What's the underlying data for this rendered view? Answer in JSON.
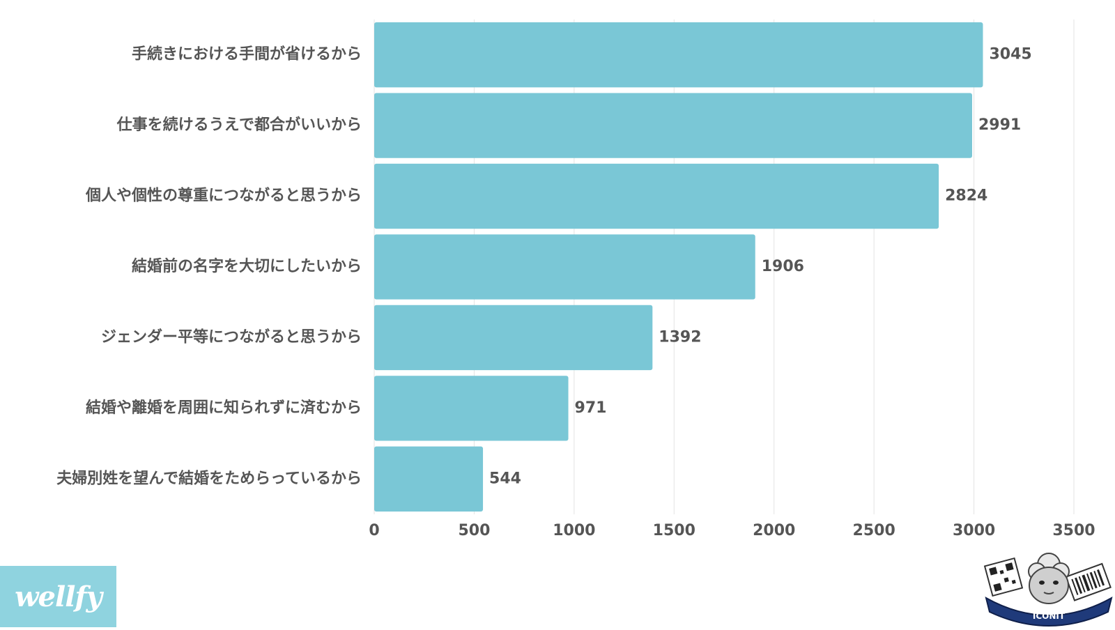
{
  "chart_data": {
    "type": "bar",
    "orientation": "horizontal",
    "categories": [
      "手続きにおける手間が省けるから",
      "仕事を続けるうえで都合がいいから",
      "個人や個性の尊重につながると思うから",
      "結婚前の名字を大切にしたいから",
      "ジェンダー平等につながると思うから",
      "結婚や離婚を周囲に知られずに済むから",
      "夫婦別姓を望んで結婚をためらっているから"
    ],
    "values": [
      3045,
      2991,
      2824,
      1906,
      1392,
      971,
      544
    ],
    "value_labels": [
      "3045",
      "2991",
      "2824",
      "1906",
      "1392",
      "971",
      "544"
    ],
    "x_ticks": [
      "0",
      "500",
      "1000",
      "1500",
      "2000",
      "2500",
      "3000",
      "3500"
    ],
    "xlim": [
      0,
      3500
    ],
    "grid": true,
    "bar_color": "#7ac7d6",
    "title": "",
    "xlabel": "",
    "ylabel": ""
  },
  "logos": {
    "left_text": "wellfy",
    "left_bg": "#8fd3df",
    "right_text": "ICONIT"
  }
}
